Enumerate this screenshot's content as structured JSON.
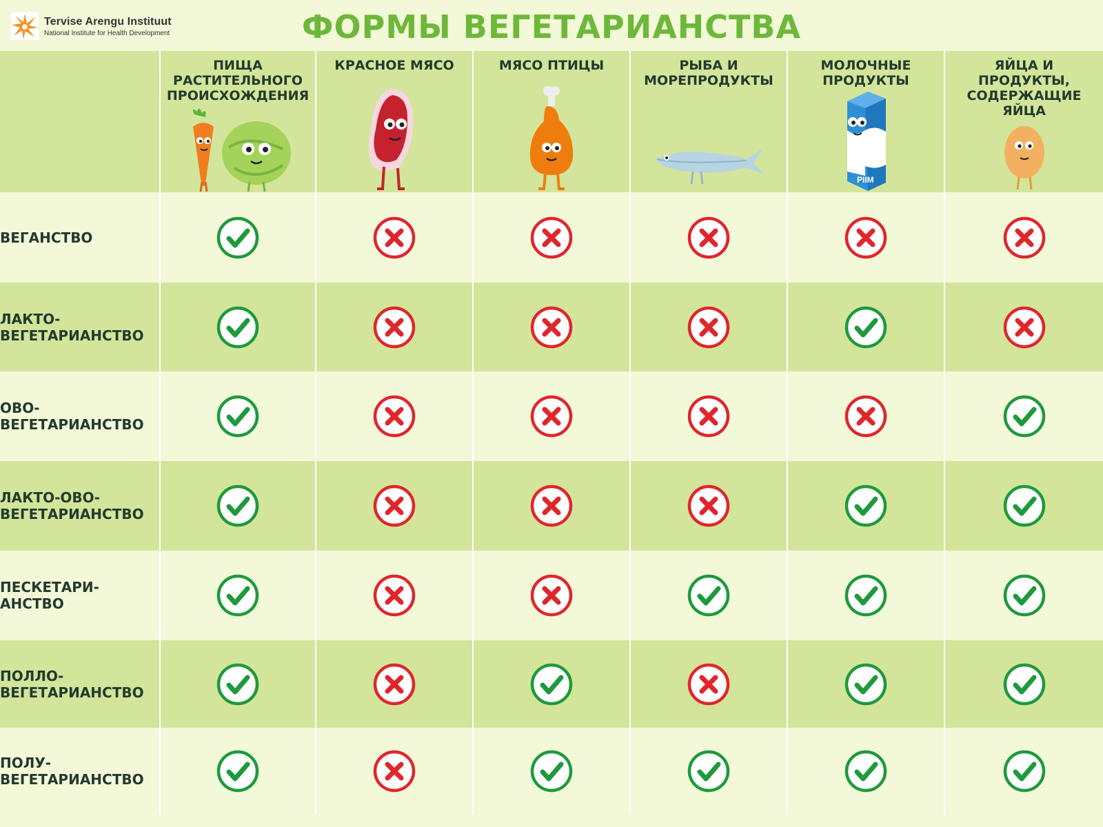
{
  "header": {
    "title": "ФОРМЫ ВЕГЕТАРИАНСТВА",
    "logo_name": "Tervise Arengu Instituut",
    "logo_subtitle": "National Institute for Health Development"
  },
  "columns": [
    {
      "label": "ПИЩА РАСТИТЕЛЬНОГО ПРОИСХОЖДЕНИЯ",
      "icon": "carrot-cabbage-icon"
    },
    {
      "label": "КРАСНОЕ МЯСО",
      "icon": "steak-icon"
    },
    {
      "label": "МЯСО ПТИЦЫ",
      "icon": "chicken-leg-icon"
    },
    {
      "label": "РЫБА И МОРЕПРОДУКТЫ",
      "icon": "fish-icon"
    },
    {
      "label": "МОЛОЧНЫЕ ПРОДУКТЫ",
      "icon": "milk-carton-icon"
    },
    {
      "label": "ЯЙЦА И ПРОДУКТЫ, СОДЕРЖАЩИЕ ЯЙЦА",
      "icon": "egg-icon"
    }
  ],
  "milk_carton_text": "PIIM",
  "rows": [
    {
      "label": "ВЕГАНСТВО",
      "values": [
        true,
        false,
        false,
        false,
        false,
        false
      ]
    },
    {
      "label": "ЛАКТО-ВЕГЕТАРИАНСТВО",
      "values": [
        true,
        false,
        false,
        false,
        true,
        false
      ]
    },
    {
      "label": "ОВО-ВЕГЕТАРИАНСТВО",
      "values": [
        true,
        false,
        false,
        false,
        false,
        true
      ]
    },
    {
      "label": "ЛАКТО-ОВО-ВЕГЕТАРИАНСТВО",
      "values": [
        true,
        false,
        false,
        false,
        true,
        true
      ]
    },
    {
      "label": "ПЕСКЕТАРИ-АНСТВО",
      "values": [
        true,
        false,
        false,
        true,
        true,
        true
      ]
    },
    {
      "label": "ПОЛЛО-ВЕГЕТАРИАНСТВО",
      "values": [
        true,
        false,
        true,
        false,
        true,
        true
      ]
    },
    {
      "label": "ПОЛУ-ВЕГЕТАРИАНСТВО",
      "values": [
        true,
        false,
        true,
        true,
        true,
        true
      ]
    }
  ],
  "colors": {
    "title_green": "#6db83a",
    "row_light": "#f2f8d8",
    "row_dark": "#d3e59a",
    "check_green": "#1e9a3c",
    "cross_red": "#e0262b",
    "label_dark": "#243a2e",
    "logo_orange": "#f39220"
  }
}
